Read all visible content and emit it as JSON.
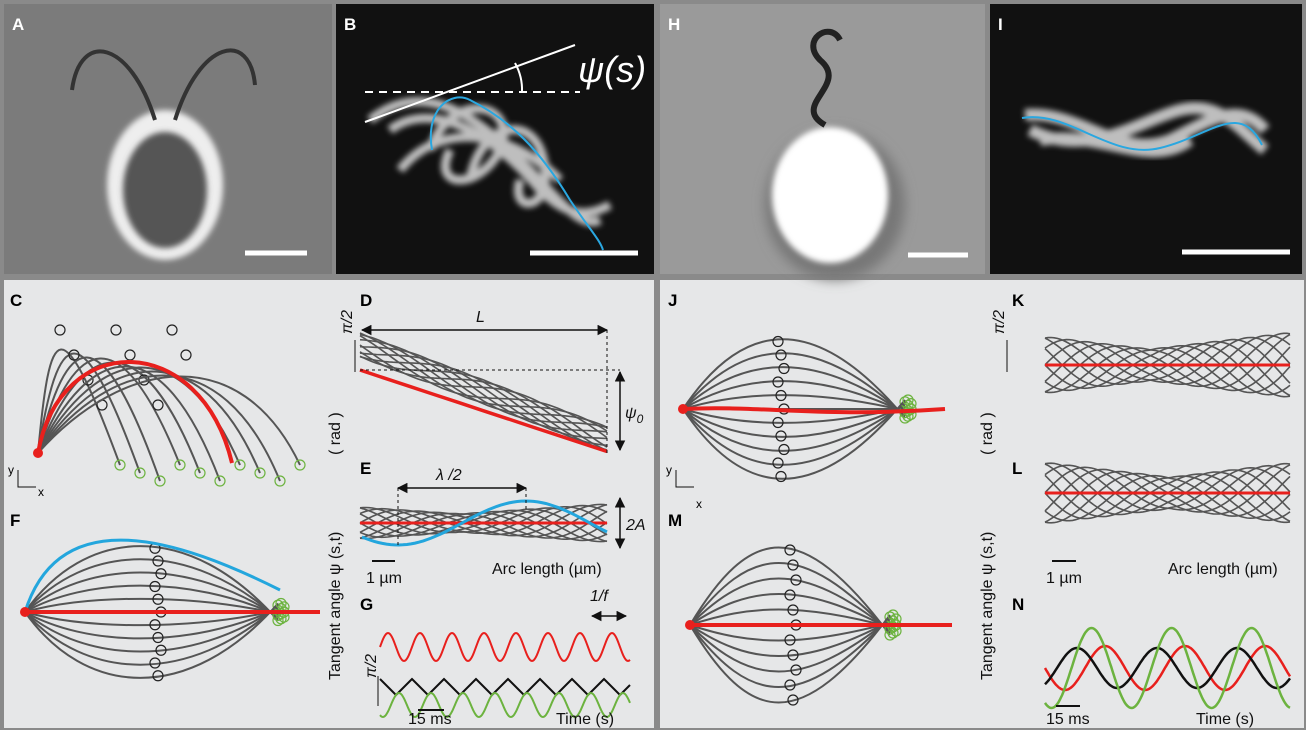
{
  "panel_labels": [
    "A",
    "B",
    "C",
    "D",
    "E",
    "F",
    "G",
    "H",
    "I",
    "J",
    "K",
    "L",
    "M",
    "N"
  ],
  "labels": {
    "psi_s": "ψ(s)",
    "length": "L",
    "psi0": "ψ",
    "psi0_sub": "0",
    "half_wavelength": "λ /2",
    "amplitude": "2A",
    "pi_half": "π/2",
    "tangent_angle": "Tangent angle  ψ (s,t)",
    "rad": "( rad )",
    "scale_um": "1 µm",
    "arc_length": "Arc length (µm)",
    "period": "1/f",
    "scale_ms": "15 ms",
    "time": "Time (s)",
    "y": "y",
    "x": "x"
  }
}
